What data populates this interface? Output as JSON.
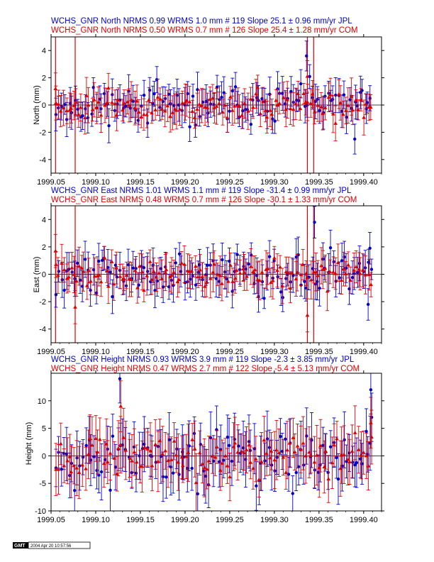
{
  "colors": {
    "jpl": "#0000cc",
    "com": "#dd0000",
    "axis": "#000000"
  },
  "stamp": {
    "logo": "GMT",
    "text": "2004 Apr 20 10:57:56"
  },
  "chart_data": [
    {
      "type": "scatter",
      "title_lines": [
        "WCHS_GNR North NRMS 0.99 WRMS  1.0 mm # 119 Slope   25.1 ±  0.96 mm/yr JPL",
        "WCHS_GNR North NRMS 0.50 WRMS  0.7 mm # 126 Slope   25.4 ±  1.28 mm/yr COM"
      ],
      "ylabel": "North (mm)",
      "xlim": [
        1999.05,
        1999.42
      ],
      "ylim": [
        -5,
        5
      ],
      "x_ticks": [
        1999.05,
        1999.1,
        1999.15,
        1999.2,
        1999.25,
        1999.3,
        1999.35,
        1999.4
      ],
      "x_tick_labels": [
        "1999.05",
        "1999.10",
        "1999.15",
        "1999.20",
        "1999.25",
        "1999.30",
        "1999.35",
        "1999.40"
      ],
      "y_ticks": [
        -4,
        -2,
        0,
        2,
        4
      ],
      "y_tick_labels": [
        "-4",
        "-2",
        "0",
        "2",
        "4"
      ],
      "breaks": [
        1999.055,
        1999.077,
        1999.337,
        1999.344
      ],
      "series": [
        {
          "marker": "circle",
          "seed": 11,
          "n": 119,
          "scatter": 1.0,
          "err": 1.0,
          "outliers": [
            [
              1999.336,
              3.6
            ],
            [
              1999.39,
              -2.5
            ]
          ]
        },
        {
          "marker": "triangle",
          "seed": 23,
          "n": 126,
          "scatter": 0.75,
          "err": 1.05,
          "outliers": [
            [
              1999.055,
              1.2
            ],
            [
              1999.337,
              2.1
            ]
          ]
        }
      ]
    },
    {
      "type": "scatter",
      "title_lines": [
        "WCHS_GNR East NRMS 1.01 WRMS  1.1 mm # 119 Slope  -31.4 ±  0.99 mm/yr JPL",
        "WCHS_GNR East NRMS 0.48 WRMS  0.7 mm # 126 Slope  -30.1 ±  1.33 mm/yr COM"
      ],
      "ylabel": "East (mm)",
      "xlim": [
        1999.05,
        1999.42
      ],
      "ylim": [
        -5,
        5
      ],
      "x_ticks": [
        1999.05,
        1999.1,
        1999.15,
        1999.2,
        1999.25,
        1999.3,
        1999.35,
        1999.4
      ],
      "x_tick_labels": [
        "1999.05",
        "1999.10",
        "1999.15",
        "1999.20",
        "1999.25",
        "1999.30",
        "1999.35",
        "1999.40"
      ],
      "y_ticks": [
        -4,
        -2,
        0,
        2,
        4
      ],
      "y_tick_labels": [
        "-4",
        "-2",
        "0",
        "2",
        "4"
      ],
      "breaks": [
        1999.055,
        1999.077,
        1999.337,
        1999.344
      ],
      "series": [
        {
          "marker": "circle",
          "seed": 37,
          "n": 119,
          "scatter": 1.1,
          "err": 1.05,
          "outliers": [
            [
              1999.345,
              3.8
            ],
            [
              1999.407,
              1.9
            ],
            [
              1999.405,
              -2.2
            ]
          ]
        },
        {
          "marker": "triangle",
          "seed": 41,
          "n": 126,
          "scatter": 0.75,
          "err": 1.1,
          "outliers": [
            [
              1999.055,
              1.7
            ],
            [
              1999.077,
              -2.4
            ],
            [
              1999.337,
              -3.0
            ]
          ]
        }
      ]
    },
    {
      "type": "scatter",
      "title_lines": [
        "WCHS_GNR Height NRMS 0.93 WRMS  3.9 mm # 119 Slope   -2.3 ±  3.85 mm/yr JPL",
        "WCHS_GNR Height NRMS 0.47 WRMS  2.7 mm # 122 Slope   -5.4 ±  5.13 mm/yr COM"
      ],
      "ylabel": "Height (mm)",
      "xlim": [
        1999.05,
        1999.42
      ],
      "ylim": [
        -10,
        15
      ],
      "x_ticks": [
        1999.05,
        1999.1,
        1999.15,
        1999.2,
        1999.25,
        1999.3,
        1999.35,
        1999.4
      ],
      "x_tick_labels": [
        "1999.05",
        "1999.10",
        "1999.15",
        "1999.20",
        "1999.25",
        "1999.30",
        "1999.35",
        "1999.40"
      ],
      "y_ticks": [
        -10,
        -5,
        0,
        5,
        10
      ],
      "y_tick_labels": [
        "-10",
        "-5",
        "0",
        "5",
        "10"
      ],
      "breaks": [],
      "series": [
        {
          "marker": "circle",
          "seed": 53,
          "n": 119,
          "scatter": 3.9,
          "err": 4.0,
          "outliers": [
            [
              1999.127,
              14.0
            ],
            [
              1999.408,
              12.0
            ],
            [
              1999.409,
              7.0
            ]
          ]
        },
        {
          "marker": "triangle",
          "seed": 67,
          "n": 122,
          "scatter": 2.7,
          "err": 4.2,
          "outliers": [
            [
              1999.128,
              9.0
            ],
            [
              1999.408,
              6.0
            ]
          ]
        }
      ]
    }
  ]
}
